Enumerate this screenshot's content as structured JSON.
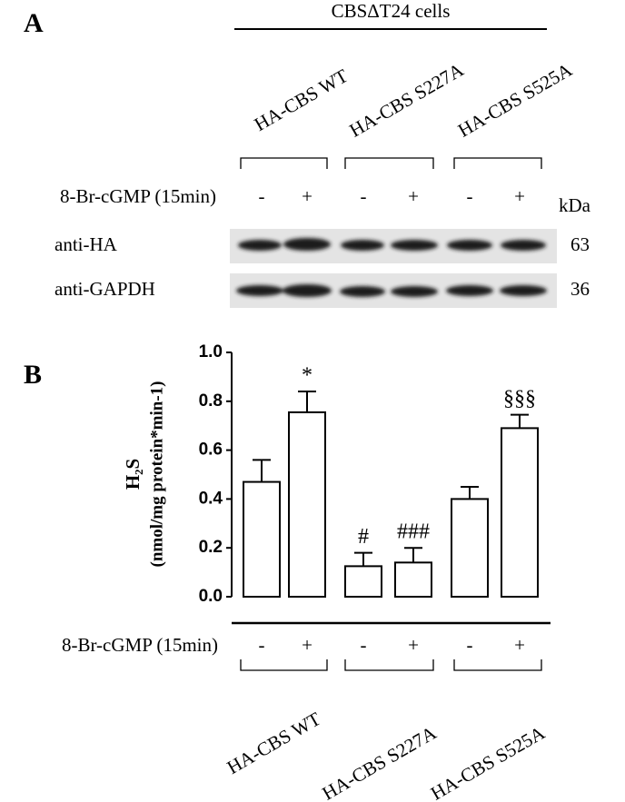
{
  "panel_a": {
    "label": "A",
    "header": "CBSΔT24 cells",
    "groups": [
      "HA-CBS WT",
      "HA-CBS S227A",
      "HA-CBS S525A"
    ],
    "treatment_label": "8-Br-cGMP (15min)",
    "treatments": [
      "-",
      "+",
      "-",
      "+",
      "-",
      "+"
    ],
    "unit": "kDa",
    "rows": [
      {
        "label": "anti-HA",
        "kda": 63
      },
      {
        "label": "anti-GAPDH",
        "kda": 36
      }
    ]
  },
  "chart_data": {
    "type": "bar",
    "label": "B",
    "y_label": [
      "H₂S",
      "(nmol/mg protein*min-1)"
    ],
    "treatment_label": "8-Br-cGMP (15min)",
    "categories": [
      "-",
      "+",
      "-",
      "+",
      "-",
      "+"
    ],
    "groups": [
      "HA-CBS WT",
      "HA-CBS S227A",
      "HA-CBS S525A"
    ],
    "values": [
      0.47,
      0.755,
      0.125,
      0.14,
      0.4,
      0.69
    ],
    "errors": [
      0.09,
      0.085,
      0.055,
      0.06,
      0.05,
      0.055
    ],
    "annotations": [
      null,
      "*",
      "#",
      "###",
      null,
      "§§§"
    ],
    "color": "#ffffff",
    "ylim": [
      0,
      1
    ],
    "yticks": [
      {
        "value": 0,
        "label": "0.0"
      },
      0.2,
      0.4,
      0.6,
      0.8,
      {
        "value": 1,
        "label": "1.0"
      }
    ]
  }
}
